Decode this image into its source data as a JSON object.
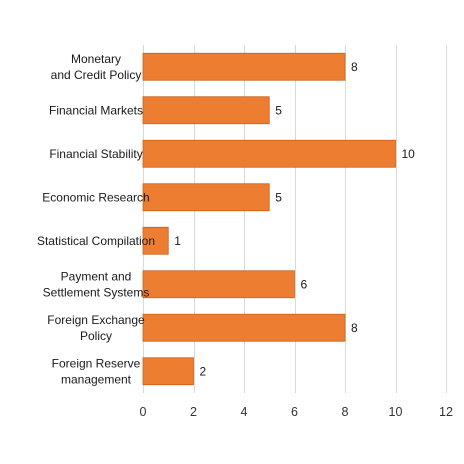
{
  "chart_data": {
    "type": "bar",
    "orientation": "horizontal",
    "categories": [
      [
        "Monetary",
        "and Credit Policy"
      ],
      [
        "Financial Markets"
      ],
      [
        "Financial Stability"
      ],
      [
        "Economic Research"
      ],
      [
        "Statistical Compilation"
      ],
      [
        "Payment and",
        "Settlement Systems"
      ],
      [
        "Foreign Exchange",
        "Policy"
      ],
      [
        "Foreign Reserve",
        "management"
      ]
    ],
    "values": [
      8,
      5,
      10,
      5,
      1,
      6,
      8,
      2
    ],
    "xlim": [
      0,
      12
    ],
    "xticks": [
      0,
      2,
      4,
      6,
      8,
      10,
      12
    ],
    "grid": true,
    "bar_color": "#ED7D31",
    "bar_edge_color": "#C8621B",
    "data_labels": true,
    "title": "",
    "xlabel": "",
    "ylabel": ""
  }
}
